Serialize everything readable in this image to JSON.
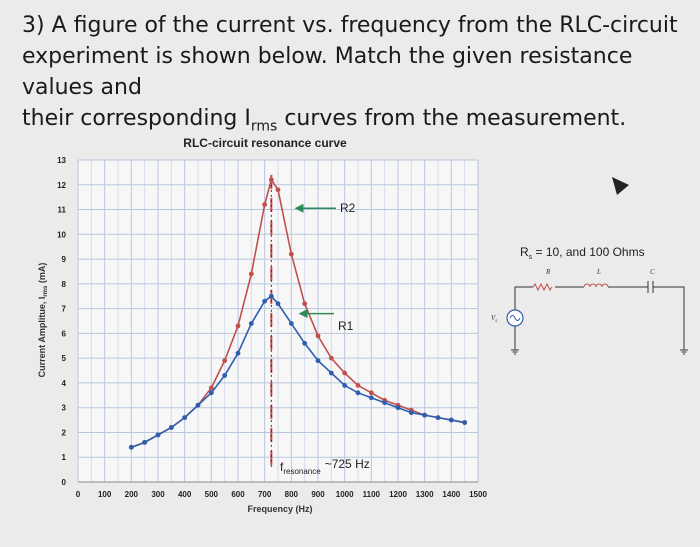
{
  "question": {
    "line1": "3) A figure of the current vs. frequency from the RLC-circuit",
    "line2": "experiment is shown below. Match the given resistance values and",
    "line3_pre": "their corresponding I",
    "line3_sub": "rms",
    "line3_post": " curves from the measurement."
  },
  "chart_data": {
    "type": "line",
    "title": "RLC-circuit resonance curve",
    "xlabel": "Frequency (Hz)",
    "ylabel": "Current Amplitue, I",
    "ylabel_sub": "rms",
    "ylabel_post": " (mA)",
    "xlim": [
      0,
      1500
    ],
    "ylim": [
      0,
      13
    ],
    "xticks": [
      "0",
      "100",
      "200",
      "300",
      "400",
      "500",
      "600",
      "700",
      "800",
      "900",
      "1000",
      "1100",
      "1200",
      "1300",
      "1400",
      "1500"
    ],
    "yticks": [
      "0",
      "1",
      "2",
      "3",
      "4",
      "5",
      "6",
      "7",
      "8",
      "9",
      "10",
      "11",
      "12",
      "13"
    ],
    "grid": true,
    "series": [
      {
        "color": "#c0504d",
        "x": [
          200,
          250,
          300,
          350,
          400,
          450,
          500,
          550,
          600,
          650,
          700,
          725,
          750,
          800,
          850,
          900,
          950,
          1000,
          1050,
          1100,
          1150,
          1200,
          1250,
          1300,
          1350,
          1400,
          1450
        ],
        "y": [
          1.4,
          1.6,
          1.9,
          2.2,
          2.6,
          3.1,
          3.8,
          4.9,
          6.3,
          8.4,
          11.2,
          12.2,
          11.8,
          9.2,
          7.2,
          5.9,
          5.0,
          4.4,
          3.9,
          3.6,
          3.3,
          3.1,
          2.9,
          2.7,
          2.6,
          2.5,
          2.4
        ]
      },
      {
        "color": "#2e5fae",
        "x": [
          200,
          250,
          300,
          350,
          400,
          450,
          500,
          550,
          600,
          650,
          700,
          725,
          750,
          800,
          850,
          900,
          950,
          1000,
          1050,
          1100,
          1150,
          1200,
          1250,
          1300,
          1350,
          1400,
          1450
        ],
        "y": [
          1.4,
          1.6,
          1.9,
          2.2,
          2.6,
          3.1,
          3.6,
          4.3,
          5.2,
          6.4,
          7.3,
          7.5,
          7.2,
          6.4,
          5.6,
          4.9,
          4.4,
          3.9,
          3.6,
          3.4,
          3.2,
          3.0,
          2.8,
          2.7,
          2.6,
          2.5,
          2.4
        ]
      }
    ],
    "annotations": {
      "r2": "R2",
      "r1": "R1",
      "f_res_main": "f",
      "f_res_sub": "resonance",
      "f_res_value": "~725 Hz"
    }
  },
  "circuit": {
    "rs_label": "R",
    "rs_sub": "s",
    "rs_text": " = 10, and 100 Ohms",
    "r_label": "R",
    "l_label": "L",
    "c_label": "C",
    "vs_label": "V",
    "vs_sub": "s"
  }
}
